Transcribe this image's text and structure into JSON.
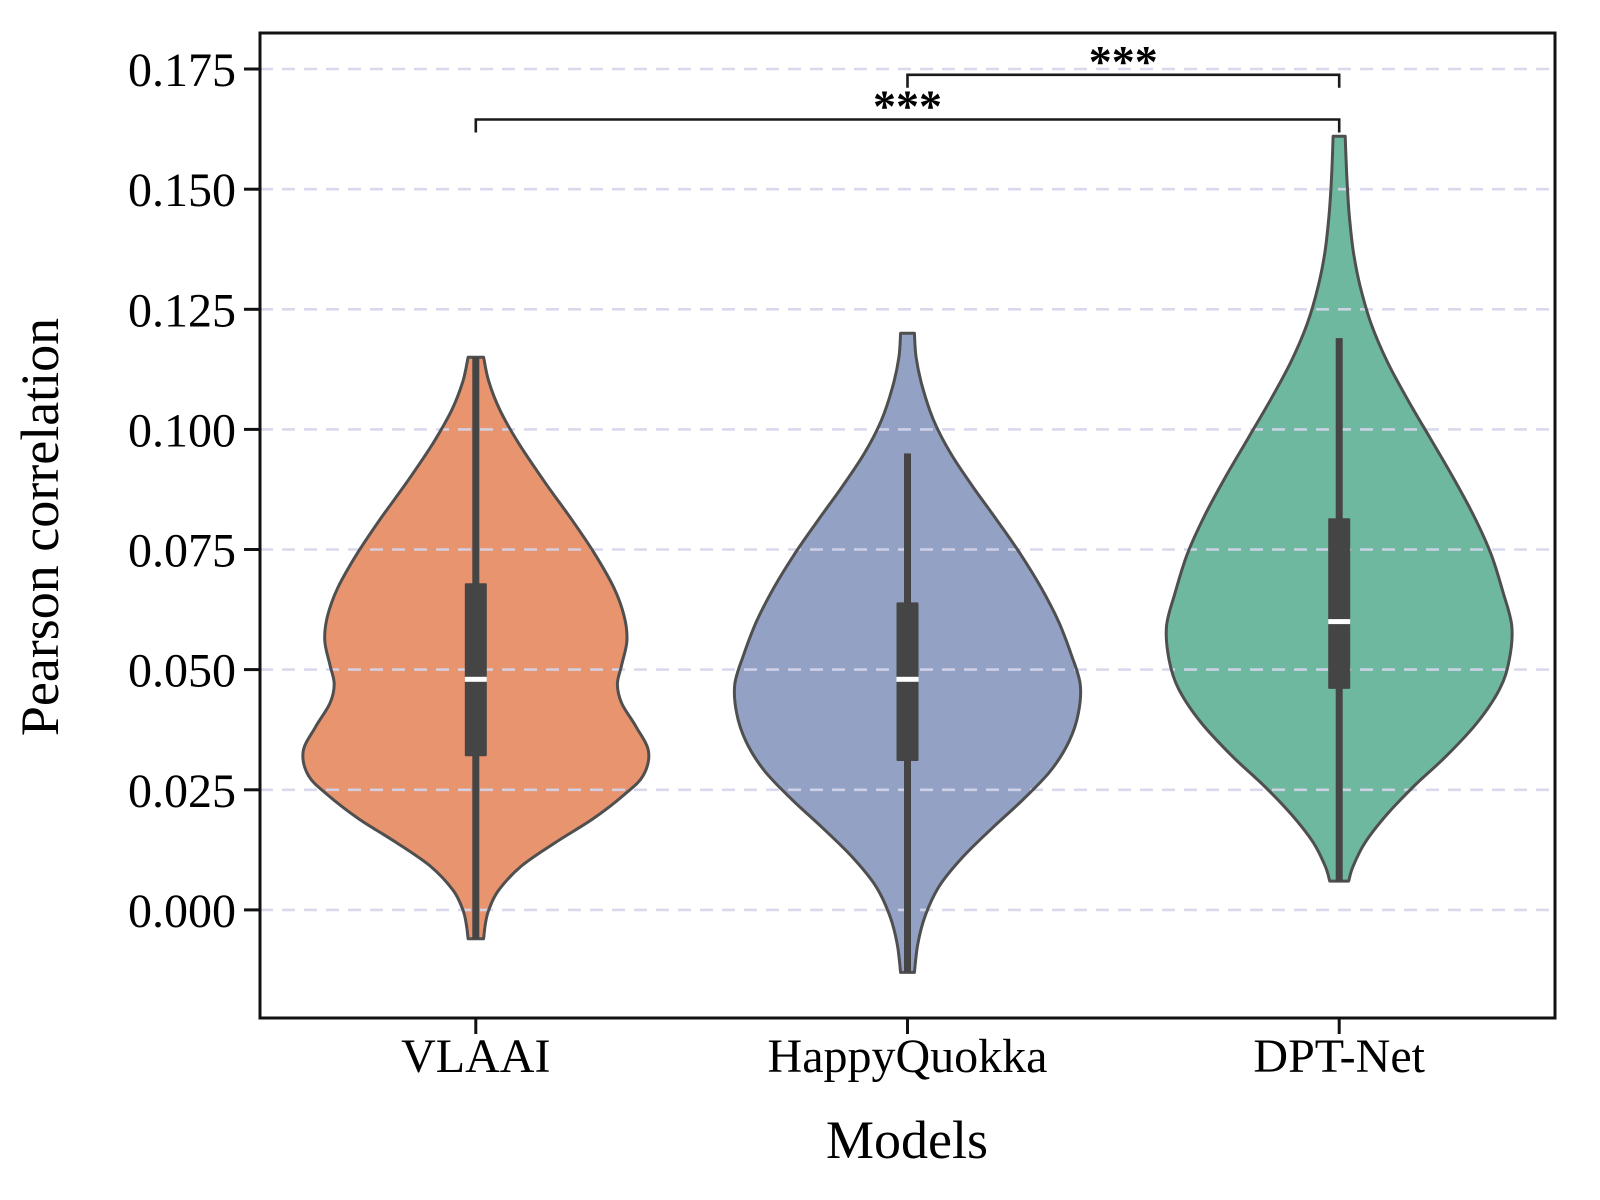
{
  "figure": {
    "background": "#ffffff"
  },
  "axes": {
    "ylabel": "Pearson correlation",
    "xlabel": "Models",
    "ytick_labels": [
      "0.000",
      "0.025",
      "0.050",
      "0.075",
      "0.100",
      "0.125",
      "0.150",
      "0.175"
    ],
    "xtick_labels": [
      "VLAAI",
      "HappyQuokka",
      "DPT-Net"
    ]
  },
  "style": {
    "grid_color": "#d5d5ec",
    "spine_color": "#111111",
    "tick_color": "#111111",
    "violin_edge_color": "#4f4f4f",
    "inner_box_color": "#454545",
    "median_color": "#ffffff",
    "bracket_color": "#1a1a1a"
  },
  "chart_data": {
    "type": "violin",
    "title": "",
    "xlabel": "Models",
    "ylabel": "Pearson correlation",
    "categories": [
      "VLAAI",
      "HappyQuokka",
      "DPT-Net"
    ],
    "ylim": [
      -0.0225,
      0.1825
    ],
    "yticks": [
      0.0,
      0.025,
      0.05,
      0.075,
      0.1,
      0.125,
      0.15,
      0.175
    ],
    "grid": "horizontal dashed gridlines",
    "legend": "none",
    "violin_width_fraction": 0.8,
    "series": [
      {
        "name": "VLAAI",
        "color": "#E8946E",
        "min": -0.006,
        "max": 0.115,
        "whisker_low": -0.006,
        "whisker_high": 0.115,
        "q1": 0.032,
        "median": 0.048,
        "q3": 0.068,
        "kde_profile": [
          [
            0.115,
            0.045
          ],
          [
            0.11,
            0.075
          ],
          [
            0.104,
            0.14
          ],
          [
            0.097,
            0.25
          ],
          [
            0.089,
            0.4
          ],
          [
            0.081,
            0.56
          ],
          [
            0.074,
            0.69
          ],
          [
            0.067,
            0.8
          ],
          [
            0.061,
            0.86
          ],
          [
            0.056,
            0.875
          ],
          [
            0.051,
            0.845
          ],
          [
            0.047,
            0.82
          ],
          [
            0.043,
            0.845
          ],
          [
            0.038,
            0.93
          ],
          [
            0.033,
            1.0
          ],
          [
            0.028,
            0.97
          ],
          [
            0.024,
            0.86
          ],
          [
            0.019,
            0.68
          ],
          [
            0.014,
            0.46
          ],
          [
            0.009,
            0.26
          ],
          [
            0.004,
            0.13
          ],
          [
            0.0,
            0.075
          ],
          [
            -0.003,
            0.055
          ],
          [
            -0.006,
            0.045
          ]
        ]
      },
      {
        "name": "HappyQuokka",
        "color": "#93A2C4",
        "min": -0.013,
        "max": 0.12,
        "whisker_low": -0.013,
        "whisker_high": 0.095,
        "q1": 0.031,
        "median": 0.048,
        "q3": 0.064,
        "kde_profile": [
          [
            0.12,
            0.04
          ],
          [
            0.115,
            0.05
          ],
          [
            0.109,
            0.085
          ],
          [
            0.102,
            0.15
          ],
          [
            0.095,
            0.25
          ],
          [
            0.088,
            0.38
          ],
          [
            0.081,
            0.52
          ],
          [
            0.074,
            0.655
          ],
          [
            0.067,
            0.775
          ],
          [
            0.06,
            0.875
          ],
          [
            0.053,
            0.95
          ],
          [
            0.047,
            1.0
          ],
          [
            0.041,
            0.99
          ],
          [
            0.035,
            0.935
          ],
          [
            0.029,
            0.83
          ],
          [
            0.023,
            0.67
          ],
          [
            0.017,
            0.49
          ],
          [
            0.011,
            0.32
          ],
          [
            0.005,
            0.185
          ],
          [
            -0.001,
            0.105
          ],
          [
            -0.007,
            0.06
          ],
          [
            -0.013,
            0.04
          ]
        ]
      },
      {
        "name": "DPT-Net",
        "color": "#6FB8A0",
        "min": 0.006,
        "max": 0.161,
        "whisker_low": 0.006,
        "whisker_high": 0.119,
        "q1": 0.046,
        "median": 0.06,
        "q3": 0.0815,
        "kde_profile": [
          [
            0.161,
            0.035
          ],
          [
            0.156,
            0.04
          ],
          [
            0.15,
            0.048
          ],
          [
            0.144,
            0.06
          ],
          [
            0.137,
            0.082
          ],
          [
            0.13,
            0.12
          ],
          [
            0.122,
            0.185
          ],
          [
            0.114,
            0.28
          ],
          [
            0.106,
            0.4
          ],
          [
            0.098,
            0.53
          ],
          [
            0.09,
            0.66
          ],
          [
            0.082,
            0.78
          ],
          [
            0.074,
            0.88
          ],
          [
            0.066,
            0.95
          ],
          [
            0.059,
            1.0
          ],
          [
            0.052,
            0.985
          ],
          [
            0.046,
            0.93
          ],
          [
            0.039,
            0.8
          ],
          [
            0.032,
            0.62
          ],
          [
            0.026,
            0.44
          ],
          [
            0.02,
            0.28
          ],
          [
            0.014,
            0.15
          ],
          [
            0.009,
            0.08
          ],
          [
            0.006,
            0.055
          ]
        ]
      }
    ],
    "significance": [
      {
        "from": "VLAAI",
        "to": "DPT-Net",
        "label": "***",
        "y": 0.1645
      },
      {
        "from": "HappyQuokka",
        "to": "DPT-Net",
        "label": "***",
        "y": 0.1738
      }
    ]
  }
}
